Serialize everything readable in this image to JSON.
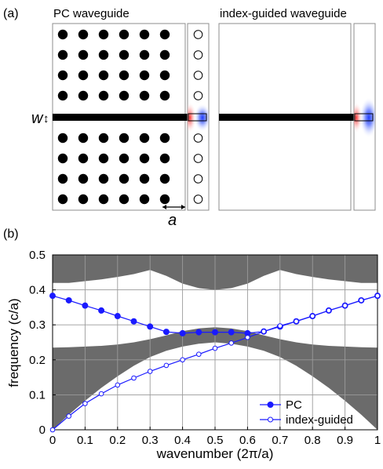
{
  "figure": {
    "panel_a": "(a)",
    "panel_b": "(b)",
    "title_left": "PC waveguide",
    "title_right": "index-guided waveguide",
    "width_symbol": "w",
    "width_arrow": "↕",
    "lattice_symbol": "a",
    "lattice_arrow": "↔"
  },
  "chart_data": {
    "type": "line",
    "xlabel": "wavenumber (2π/a)",
    "ylabel": "frequency (c/a)",
    "xlim": [
      0,
      1
    ],
    "ylim": [
      0,
      0.5
    ],
    "xticks": [
      0,
      0.1,
      0.2,
      0.3,
      0.4,
      0.5,
      0.6,
      0.7,
      0.8,
      0.9,
      1
    ],
    "yticks": [
      0,
      0.1,
      0.2,
      0.3,
      0.4,
      0.5
    ],
    "xtick_labels": [
      "0",
      "0.1",
      "0.2",
      "0.3",
      "0.4",
      "0.5",
      "0.6",
      "0.7",
      "0.8",
      "0.9",
      "1"
    ],
    "ytick_labels": [
      "0",
      "0.1",
      "0.2",
      "0.3",
      "0.4",
      "0.5"
    ],
    "grid": true,
    "legend_position": "bottom-right",
    "bands": {
      "color": "#6b6b6b",
      "upper_band_bottom": [
        {
          "x": 0,
          "y": 0.42
        },
        {
          "x": 0.05,
          "y": 0.42
        },
        {
          "x": 0.1,
          "y": 0.425
        },
        {
          "x": 0.15,
          "y": 0.43
        },
        {
          "x": 0.2,
          "y": 0.437
        },
        {
          "x": 0.25,
          "y": 0.445
        },
        {
          "x": 0.3,
          "y": 0.457
        },
        {
          "x": 0.35,
          "y": 0.44
        },
        {
          "x": 0.4,
          "y": 0.418
        },
        {
          "x": 0.45,
          "y": 0.405
        },
        {
          "x": 0.5,
          "y": 0.4
        },
        {
          "x": 0.55,
          "y": 0.405
        },
        {
          "x": 0.6,
          "y": 0.418
        },
        {
          "x": 0.65,
          "y": 0.44
        },
        {
          "x": 0.7,
          "y": 0.457
        },
        {
          "x": 0.75,
          "y": 0.445
        },
        {
          "x": 0.8,
          "y": 0.437
        },
        {
          "x": 0.85,
          "y": 0.43
        },
        {
          "x": 0.9,
          "y": 0.425
        },
        {
          "x": 0.95,
          "y": 0.42
        },
        {
          "x": 1,
          "y": 0.42
        }
      ],
      "lower_band_top": [
        {
          "x": 0,
          "y": 0.235
        },
        {
          "x": 0.05,
          "y": 0.236
        },
        {
          "x": 0.1,
          "y": 0.238
        },
        {
          "x": 0.15,
          "y": 0.24
        },
        {
          "x": 0.2,
          "y": 0.244
        },
        {
          "x": 0.25,
          "y": 0.25
        },
        {
          "x": 0.3,
          "y": 0.259
        },
        {
          "x": 0.35,
          "y": 0.27
        },
        {
          "x": 0.4,
          "y": 0.282
        },
        {
          "x": 0.45,
          "y": 0.29
        },
        {
          "x": 0.5,
          "y": 0.293
        },
        {
          "x": 0.55,
          "y": 0.29
        },
        {
          "x": 0.6,
          "y": 0.282
        },
        {
          "x": 0.65,
          "y": 0.27
        },
        {
          "x": 0.7,
          "y": 0.259
        },
        {
          "x": 0.75,
          "y": 0.25
        },
        {
          "x": 0.8,
          "y": 0.244
        },
        {
          "x": 0.85,
          "y": 0.24
        },
        {
          "x": 0.9,
          "y": 0.238
        },
        {
          "x": 0.95,
          "y": 0.236
        },
        {
          "x": 1,
          "y": 0.235
        }
      ],
      "light_line": [
        {
          "x": 0,
          "y": 0
        },
        {
          "x": 0.05,
          "y": 0.043
        },
        {
          "x": 0.1,
          "y": 0.083
        },
        {
          "x": 0.15,
          "y": 0.12
        },
        {
          "x": 0.2,
          "y": 0.153
        },
        {
          "x": 0.25,
          "y": 0.183
        },
        {
          "x": 0.3,
          "y": 0.208
        },
        {
          "x": 0.35,
          "y": 0.226
        },
        {
          "x": 0.4,
          "y": 0.238
        },
        {
          "x": 0.45,
          "y": 0.246
        },
        {
          "x": 0.5,
          "y": 0.25
        },
        {
          "x": 0.55,
          "y": 0.246
        },
        {
          "x": 0.6,
          "y": 0.238
        },
        {
          "x": 0.65,
          "y": 0.226
        },
        {
          "x": 0.7,
          "y": 0.208
        },
        {
          "x": 0.75,
          "y": 0.183
        },
        {
          "x": 0.8,
          "y": 0.153
        },
        {
          "x": 0.85,
          "y": 0.12
        },
        {
          "x": 0.9,
          "y": 0.083
        },
        {
          "x": 0.95,
          "y": 0.043
        },
        {
          "x": 1,
          "y": 0
        }
      ]
    },
    "series": [
      {
        "name": "PC",
        "color": "#1a1aff",
        "marker": "filled-circle",
        "x": [
          0,
          0.05,
          0.1,
          0.15,
          0.2,
          0.25,
          0.3,
          0.35,
          0.4,
          0.45,
          0.5,
          0.55,
          0.6,
          0.65,
          0.7,
          0.75,
          0.8,
          0.85,
          0.9,
          0.95,
          1
        ],
        "y": [
          0.383,
          0.37,
          0.355,
          0.341,
          0.325,
          0.31,
          0.295,
          0.28,
          0.276,
          0.279,
          0.279,
          0.279,
          0.276,
          0.281,
          0.295,
          0.31,
          0.325,
          0.341,
          0.355,
          0.37,
          0.383
        ]
      },
      {
        "name": "index-guided",
        "color": "#1a1aff",
        "marker": "open-circle",
        "x": [
          0,
          0.05,
          0.1,
          0.15,
          0.2,
          0.25,
          0.3,
          0.35,
          0.4,
          0.45,
          0.5,
          0.55,
          0.6,
          0.65,
          0.7,
          0.75,
          0.8,
          0.85,
          0.9,
          0.95,
          1
        ],
        "y": [
          0,
          0.039,
          0.075,
          0.103,
          0.128,
          0.148,
          0.167,
          0.184,
          0.2,
          0.216,
          0.233,
          0.248,
          0.264,
          0.281,
          0.297,
          0.31,
          0.325,
          0.341,
          0.355,
          0.37,
          0.383
        ]
      }
    ]
  }
}
